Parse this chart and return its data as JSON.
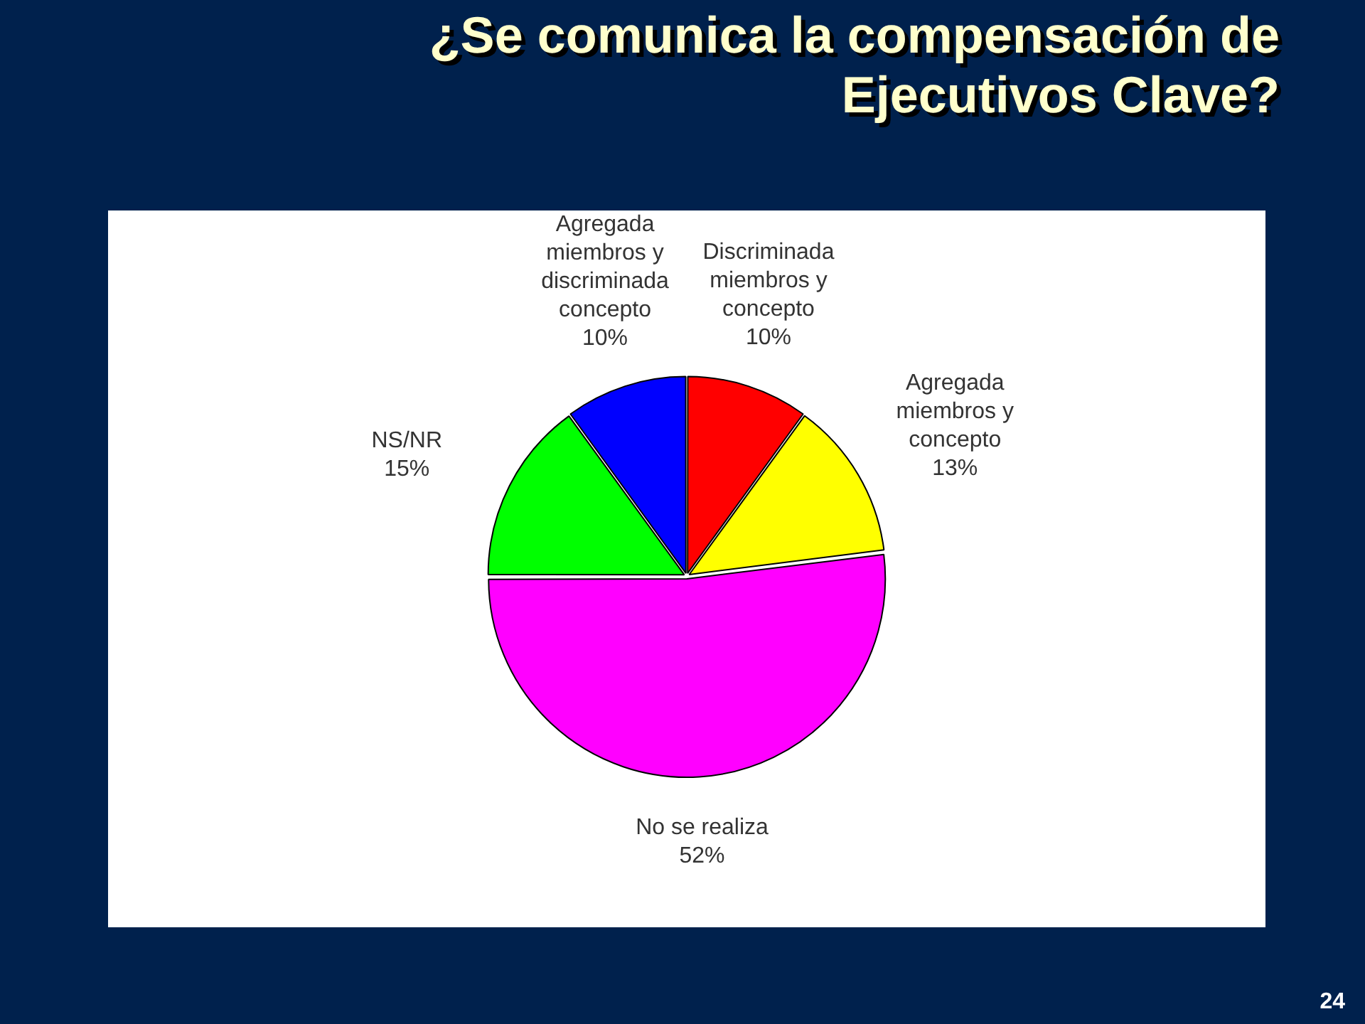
{
  "chart_data": {
    "type": "pie",
    "title": "¿Se comunica la compensación de Ejecutivos Clave?",
    "categories": [
      "Discriminada miembros y concepto",
      "Agregada miembros y concepto",
      "No se realiza",
      "NS/NR",
      "Agregada miembros y discriminada concepto"
    ],
    "values": [
      10,
      13,
      52,
      15,
      10
    ],
    "value_labels": [
      "10%",
      "13%",
      "52%",
      "15%",
      "10%"
    ],
    "colors": [
      "#ff0000",
      "#ffff00",
      "#ff00ff",
      "#00ff00",
      "#0000ff"
    ],
    "annotations": [
      "24"
    ]
  }
}
